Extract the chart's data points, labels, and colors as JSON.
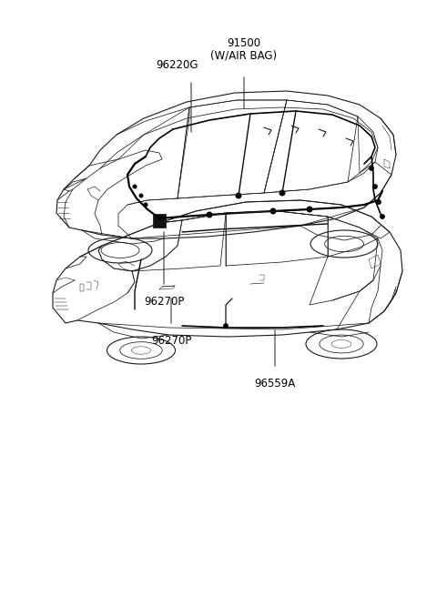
{
  "background_color": "#ffffff",
  "line_color": "#1a1a1a",
  "figsize": [
    4.8,
    6.56
  ],
  "dpi": 100,
  "labels": {
    "airbag": "(W/AIR BAG)",
    "n91500": "91500",
    "n96220G": "96220G",
    "n96270P": "96270P",
    "n96559A": "96559A"
  },
  "label_fontsize": 8.5,
  "label_fontsize_small": 7.5
}
